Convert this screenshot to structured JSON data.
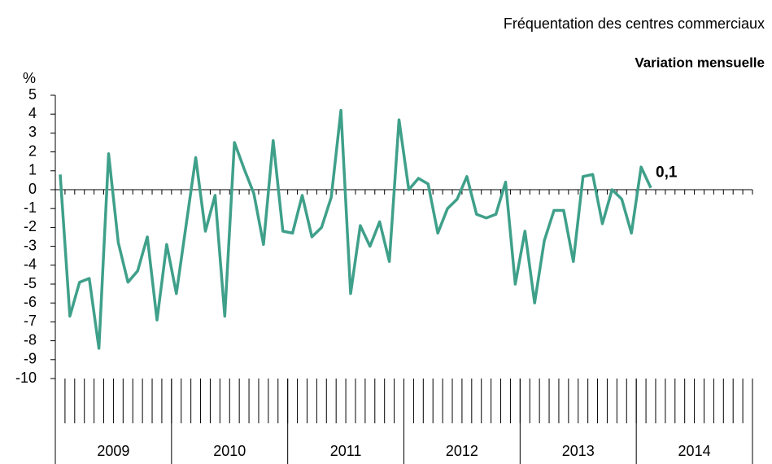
{
  "chart_data": {
    "type": "line",
    "title": "Fréquentation des centres commerciaux",
    "subtitle": "Variation mensuelle",
    "y_label": "%",
    "year_groups": [
      "2009",
      "2010",
      "2011",
      "2012",
      "2013",
      "2014"
    ],
    "categories": [
      null,
      null,
      null,
      null,
      null,
      null,
      null,
      null,
      null,
      null,
      null,
      null,
      null,
      null,
      null,
      null,
      null,
      null,
      null,
      null,
      null,
      null,
      null,
      null,
      null,
      null,
      null,
      null,
      null,
      null,
      null,
      null,
      null,
      null,
      null,
      null,
      null,
      null,
      null,
      null,
      null,
      null,
      null,
      null,
      null,
      null,
      null,
      null,
      null,
      null,
      null,
      null,
      null,
      null,
      null,
      null,
      null,
      null,
      null,
      null,
      null,
      null
    ],
    "series": [
      {
        "name": null,
        "color": "#3fa08a",
        "values": [
          0.8,
          -6.7,
          -4.9,
          -4.7,
          -8.4,
          1.9,
          -2.8,
          -4.9,
          -4.3,
          -2.5,
          -6.9,
          -2.9,
          -5.5,
          -1.9,
          1.7,
          -2.2,
          -0.3,
          -6.7,
          2.5,
          1.1,
          -0.2,
          -2.9,
          2.6,
          -2.2,
          -2.3,
          -0.3,
          -2.5,
          -2.0,
          -0.4,
          4.2,
          -5.5,
          -1.9,
          -3.0,
          -1.7,
          -3.8,
          3.7,
          0.0,
          0.6,
          0.3,
          -2.3,
          -1.0,
          -0.5,
          0.7,
          -1.3,
          -1.5,
          -1.3,
          0.4,
          -5.0,
          -2.2,
          -6.0,
          -2.7,
          -1.1,
          -1.1,
          -3.8,
          0.7,
          0.8,
          -1.8,
          0.0,
          -0.5,
          -2.3,
          1.2,
          0.1
        ],
        "value_labels": [
          null,
          null,
          null,
          null,
          null,
          null,
          null,
          null,
          null,
          null,
          null,
          null,
          null,
          null,
          null,
          null,
          null,
          null,
          null,
          null,
          null,
          null,
          null,
          null,
          null,
          null,
          null,
          null,
          null,
          null,
          null,
          null,
          null,
          null,
          null,
          null,
          null,
          null,
          null,
          null,
          null,
          null,
          null,
          null,
          null,
          null,
          null,
          null,
          null,
          null,
          null,
          null,
          null,
          null,
          null,
          null,
          null,
          null,
          null,
          null,
          null,
          "0,1"
        ]
      }
    ],
    "ylim": [
      -10,
      5
    ],
    "yticks": [
      5,
      4,
      3,
      2,
      1,
      0,
      -1,
      -2,
      -3,
      -4,
      -5,
      -6,
      -7,
      -8,
      -9,
      -10
    ]
  }
}
